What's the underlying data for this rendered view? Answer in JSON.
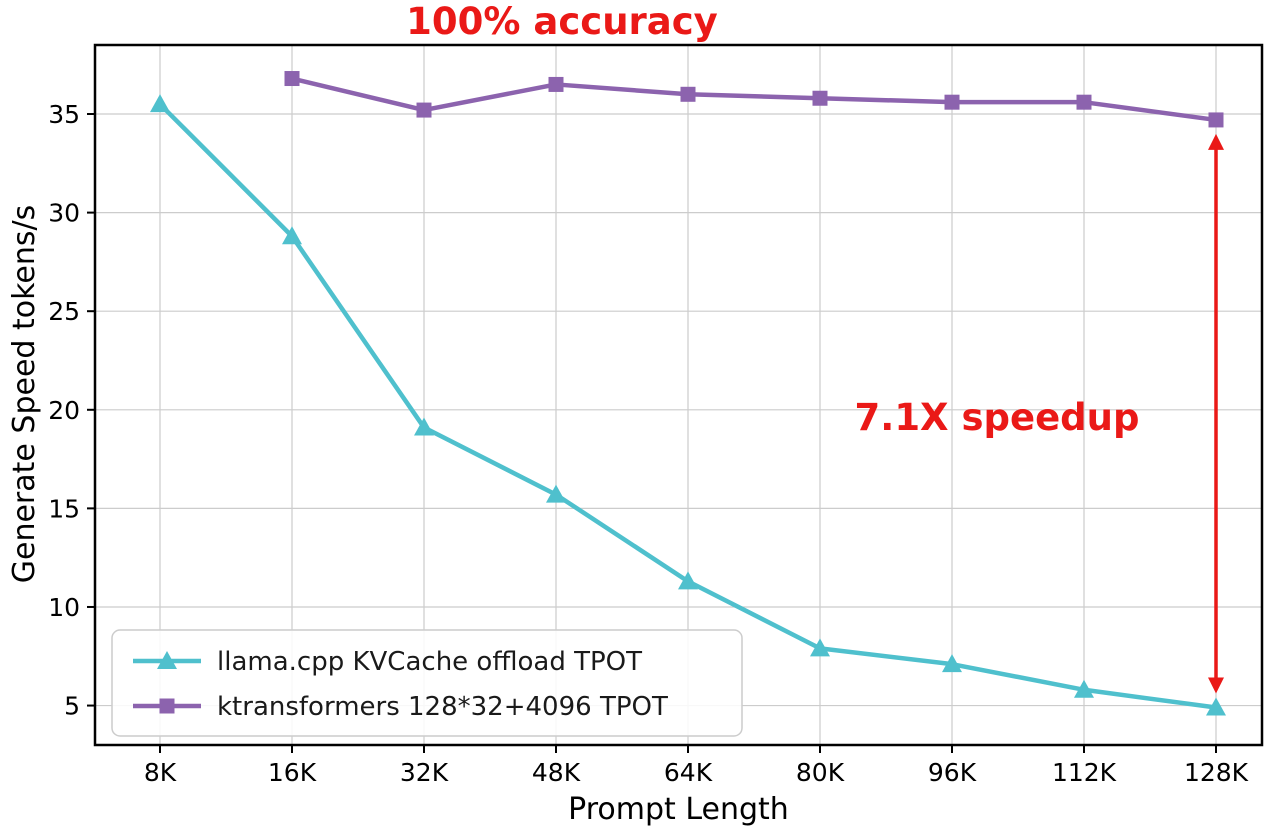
{
  "chart_data": {
    "type": "line",
    "title_annotation": "100% accuracy",
    "speedup_annotation": "7.1X speedup",
    "annotation_color": "#ea1917",
    "xlabel": "Prompt Length",
    "ylabel": "Generate Speed tokens/s",
    "categories": [
      "8K",
      "16K",
      "32K",
      "48K",
      "64K",
      "80K",
      "96K",
      "112K",
      "128K"
    ],
    "yticks": [
      5,
      10,
      15,
      20,
      25,
      30,
      35
    ],
    "ylim": [
      3.0,
      38.5
    ],
    "grid": true,
    "legend_position": "lower-left",
    "series": [
      {
        "name": "llama.cpp KVCache offload TPOT",
        "color": "#4fc0cd",
        "marker": "triangle",
        "values": [
          35.5,
          28.8,
          19.1,
          15.7,
          11.3,
          7.9,
          7.1,
          5.8,
          4.9
        ]
      },
      {
        "name": "ktransformers 128*32+4096 TPOT",
        "color": "#8c63ae",
        "marker": "square",
        "values": [
          null,
          36.8,
          35.2,
          36.5,
          36.0,
          35.8,
          35.6,
          35.6,
          34.7
        ]
      }
    ],
    "arrow": {
      "x_category": "128K",
      "from": 34.7,
      "to": 4.9
    }
  }
}
